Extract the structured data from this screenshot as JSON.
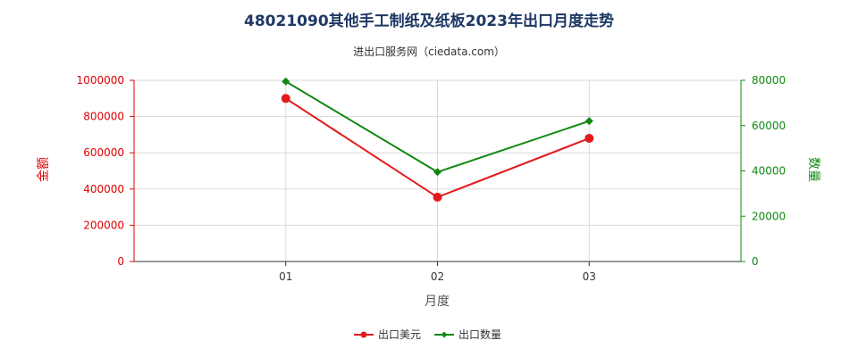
{
  "chart_data": {
    "type": "line",
    "title": "48021090其他手工制纸及纸板2023年出口月度走势",
    "subtitle": "进出口服务网（ciedata.com）",
    "categories": [
      "01",
      "02",
      "03"
    ],
    "xlabel": "月度",
    "ylabel_left": "金额",
    "ylabel_right": "数量",
    "ylim_left": [
      0,
      1000000
    ],
    "ylim_right": [
      0,
      80000
    ],
    "yticks_left": [
      "0",
      "200000",
      "400000",
      "600000",
      "800000",
      "1000000"
    ],
    "yticks_right": [
      "0",
      "20000",
      "40000",
      "60000",
      "80000"
    ],
    "grid": true,
    "legend_position": "bottom",
    "series": [
      {
        "name": "出口美元",
        "axis": "left",
        "color": "#e31a1c",
        "marker": "circle",
        "values": [
          900000,
          355000,
          680000
        ]
      },
      {
        "name": "出口数量",
        "axis": "right",
        "color": "#118811",
        "marker": "diamond",
        "values": [
          79500,
          39500,
          62000
        ]
      }
    ]
  }
}
